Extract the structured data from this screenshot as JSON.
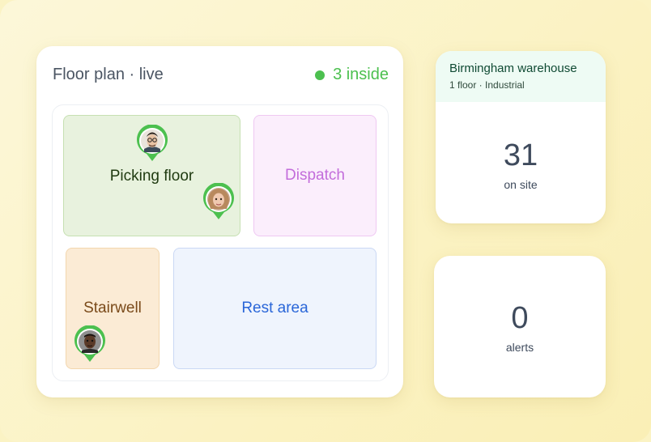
{
  "floor_plan": {
    "title": "Floor plan · live",
    "status": "3 inside",
    "status_color": "#4cc04f",
    "rooms": [
      {
        "name": "Picking floor",
        "color": "#e8f2de"
      },
      {
        "name": "Dispatch",
        "color": "#fbeefc"
      },
      {
        "name": "Stairwell",
        "color": "#fbebd5"
      },
      {
        "name": "Rest area",
        "color": "#eff4fd"
      }
    ],
    "people_icons": [
      "avatar-pin-icon",
      "avatar-pin-icon",
      "avatar-pin-icon"
    ]
  },
  "warehouse": {
    "name": "Birmingham warehouse",
    "subtitle": "1 floor · Industrial",
    "on_site_count": "31",
    "on_site_label": "on site"
  },
  "alerts": {
    "count": "0",
    "label": "alerts"
  }
}
